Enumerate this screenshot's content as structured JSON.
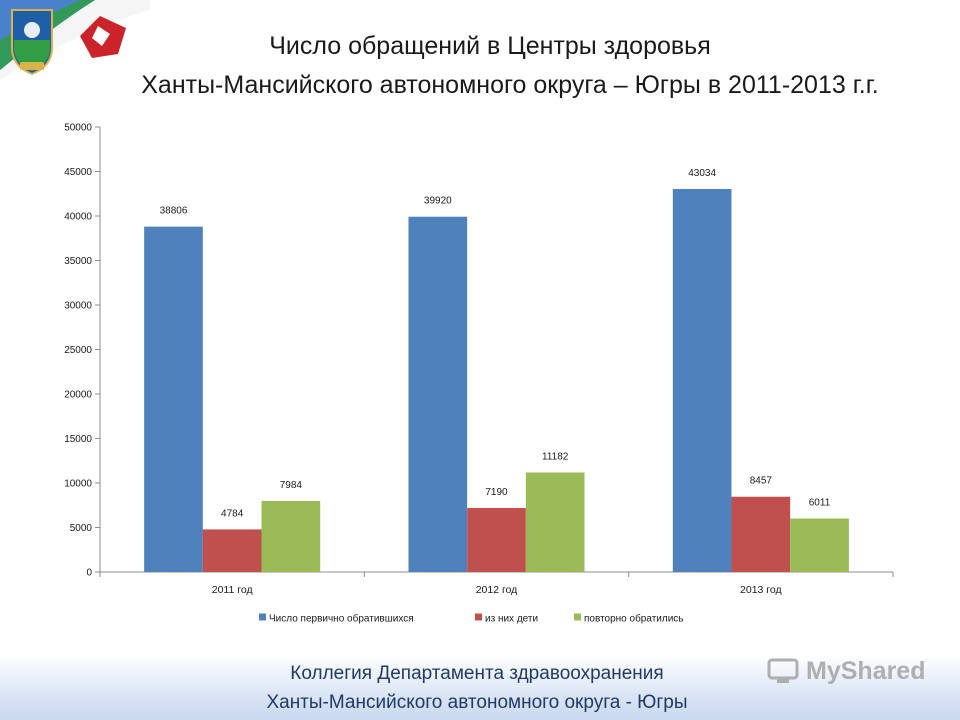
{
  "header": {
    "title_line1": "Число обращений в Центры здоровья",
    "title_line2": "Ханты-Мансийского автономного округа – Югры в 2011-2013 г.г."
  },
  "footer": {
    "line1": "Коллегия Департамента здравоохранения",
    "line2": "Ханты-Мансийского автономного округа - Югры",
    "watermark": "MyShared"
  },
  "colors": {
    "series": [
      "#4f81bd",
      "#c0504d",
      "#9bbb59"
    ],
    "axis": "#8c8c8c",
    "flag_white": "#ffffff",
    "flag_blue": "#2a6cc4",
    "flag_green": "#2f9e44",
    "flag_red": "#cc2229"
  },
  "icons": {
    "coat_of_arms": "coat-of-arms-icon",
    "red_emblem": "red-emblem-icon",
    "watermark": "myshared-logo-icon"
  },
  "chart_data": {
    "type": "bar",
    "categories": [
      "2011 год",
      "2012 год",
      "2013 год"
    ],
    "series": [
      {
        "name": "Число первично обратившихся",
        "values": [
          38806,
          39920,
          43034
        ]
      },
      {
        "name": "из них дети",
        "values": [
          4784,
          7190,
          8457
        ]
      },
      {
        "name": "повторно обратились",
        "values": [
          7984,
          11182,
          6011
        ]
      }
    ],
    "ylim": [
      0,
      50000
    ],
    "yticks": [
      0,
      5000,
      10000,
      15000,
      20000,
      25000,
      30000,
      35000,
      40000,
      45000,
      50000
    ],
    "grid": false,
    "legend_position": "bottom",
    "data_labels": true
  }
}
